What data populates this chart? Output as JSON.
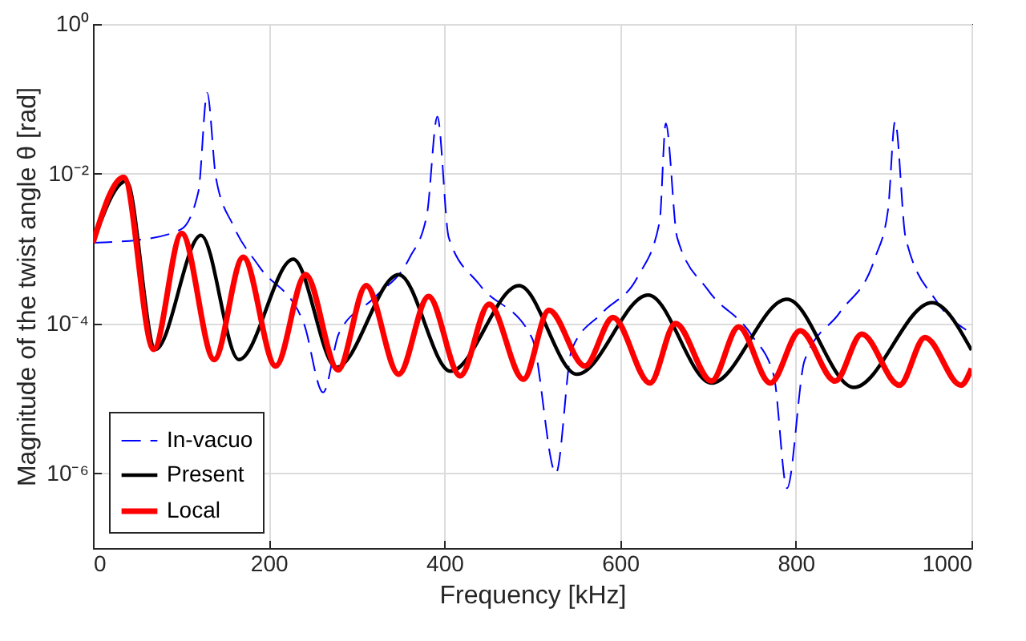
{
  "chart_data": {
    "type": "line",
    "xlabel": "Frequency [kHz]",
    "ylabel": "Magnitude of the twist angle θ [rad]",
    "log": "y",
    "grid": true,
    "legend": "bottom left",
    "xlim": [
      0,
      1000
    ],
    "xticks": [
      0,
      200,
      400,
      600,
      800,
      1000
    ],
    "ylim": [
      1e-07,
      1
    ],
    "yticks": [
      {
        "value": 1,
        "label": "10⁰"
      },
      {
        "value": 0.01,
        "label": "10⁻²"
      },
      {
        "value": 0.0001,
        "label": "10⁻⁴"
      },
      {
        "value": 1e-06,
        "label": "10⁻⁶"
      }
    ],
    "series": [
      {
        "name": "In-vacuo",
        "color": "#0000ff",
        "line_style": "dashed",
        "x": [
          0,
          50,
          100,
          120,
          130,
          140,
          160,
          189,
          240,
          262,
          280,
          320,
          360,
          380,
          392,
          405,
          440,
          500,
          527,
          545,
          580,
          620,
          645,
          652,
          665,
          700,
          750,
          775,
          790,
          810,
          850,
          890,
          905,
          913,
          925,
          960,
          1000
        ],
        "values": [
          0.0012,
          0.0013,
          0.0018,
          0.0058,
          0.12,
          0.0088,
          0.002,
          0.00058,
          0.0001,
          1.2e-05,
          7.4e-05,
          0.00022,
          0.00074,
          0.0028,
          0.058,
          0.0014,
          0.00033,
          6.3e-05,
          1e-06,
          4.5e-05,
          0.00014,
          0.00042,
          0.0023,
          0.047,
          0.0014,
          0.00028,
          6.9e-05,
          2e-05,
          6.3e-07,
          3.2e-05,
          0.00014,
          0.00074,
          0.0033,
          0.05,
          0.0014,
          0.0002,
          7.4e-05
        ]
      },
      {
        "name": "Present",
        "color": "#000000",
        "line_style": "solid",
        "x": [
          0,
          38,
          71,
          123,
          166,
          228,
          277,
          348,
          407,
          485,
          551,
          632,
          704,
          790,
          866,
          955,
          1000
        ],
        "values": [
          0.0012,
          0.008,
          4.5e-05,
          0.0015,
          3.3e-05,
          0.00072,
          2.6e-05,
          0.00045,
          2.3e-05,
          0.00032,
          2.1e-05,
          0.00024,
          1.6e-05,
          0.00021,
          1.4e-05,
          0.00019,
          4.4e-05
        ]
      },
      {
        "name": "Local",
        "color": "#ff0000",
        "line_style": "solid",
        "x": [
          0,
          35,
          69,
          101,
          138,
          171,
          208,
          242,
          279,
          311,
          348,
          382,
          418,
          451,
          490,
          519,
          560,
          592,
          634,
          663,
          704,
          735,
          771,
          805,
          845,
          875,
          918,
          947,
          988,
          1000
        ],
        "values": [
          0.0012,
          0.009,
          4.5e-05,
          0.0016,
          3.3e-05,
          0.00077,
          2.7e-05,
          0.00045,
          2.4e-05,
          0.00032,
          2.1e-05,
          0.00023,
          2e-05,
          0.00018,
          1.8e-05,
          0.00015,
          2.7e-05,
          0.00012,
          1.6e-05,
          0.0001,
          1.7e-05,
          9e-05,
          1.6e-05,
          8e-05,
          1.7e-05,
          7.2e-05,
          1.5e-05,
          6.5e-05,
          1.5e-05,
          2.5e-05
        ]
      }
    ]
  }
}
